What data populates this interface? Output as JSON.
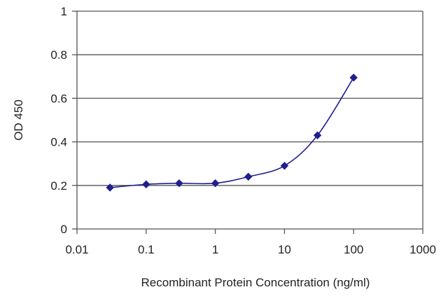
{
  "chart_data": {
    "type": "scatter",
    "xlabel": "Recombinant Protein Concentration (ng/ml)",
    "ylabel": "OD 450",
    "xscale": "log",
    "xlim": [
      0.01,
      1000
    ],
    "ylim": [
      0,
      1
    ],
    "x_ticks": [
      "0.01",
      "0.1",
      "1",
      "10",
      "100",
      "1000"
    ],
    "y_ticks": [
      "0",
      "0.2",
      "0.4",
      "0.6",
      "0.8",
      "1"
    ],
    "x_tick_values": [
      0.01,
      0.1,
      1,
      10,
      100,
      1000
    ],
    "y_tick_values": [
      0,
      0.2,
      0.4,
      0.6,
      0.8,
      1
    ],
    "grid": "horizontal",
    "legend": "none",
    "series": [
      {
        "x": [
          0.03,
          0.1,
          0.3,
          1,
          3,
          10,
          30,
          100
        ],
        "y": [
          0.19,
          0.205,
          0.21,
          0.21,
          0.24,
          0.29,
          0.43,
          0.695
        ],
        "color": "#1f1f8f",
        "marker": "diamond",
        "line": "smooth"
      }
    ]
  }
}
